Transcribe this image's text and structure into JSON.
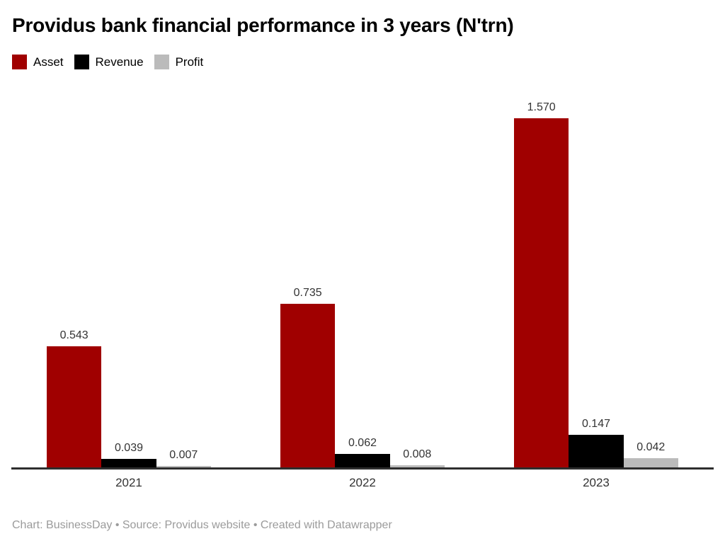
{
  "header": {
    "title": "Providus bank financial performance in 3 years (N'trn)"
  },
  "chart_data": {
    "type": "bar",
    "title": "Providus bank financial performance in 3 years (N'trn)",
    "categories": [
      "2021",
      "2022",
      "2023"
    ],
    "series": [
      {
        "name": "Asset",
        "color": "#a00000",
        "values": [
          0.543,
          0.735,
          1.57
        ]
      },
      {
        "name": "Revenue",
        "color": "#000000",
        "values": [
          0.039,
          0.062,
          0.147
        ]
      },
      {
        "name": "Profit",
        "color": "#bbbbbb",
        "values": [
          0.007,
          0.008,
          0.042
        ]
      }
    ],
    "value_label_format": "3-decimals",
    "ylim": [
      0,
      1.75
    ],
    "grid": false,
    "legend_position": "top-left",
    "axis_line_color": "#2e2e2e",
    "xlabel": "",
    "ylabel": ""
  },
  "footer": {
    "credit": "Chart: BusinessDay • Source: Providus website • Created with Datawrapper"
  }
}
